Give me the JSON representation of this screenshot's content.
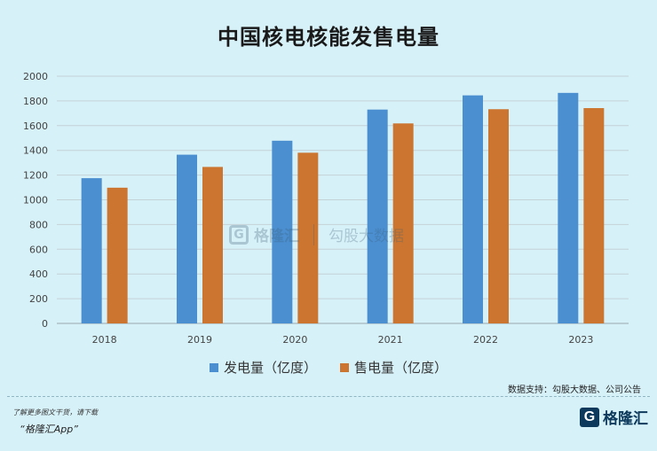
{
  "chart_data": {
    "type": "bar",
    "title": "中国核电核能发售电量",
    "categories": [
      "2018",
      "2019",
      "2020",
      "2021",
      "2022",
      "2023"
    ],
    "series": [
      {
        "name": "发电量（亿度）",
        "color": "#4b8fd1",
        "values": [
          1175,
          1365,
          1478,
          1730,
          1845,
          1865
        ]
      },
      {
        "name": "售电量（亿度）",
        "color": "#cb7530",
        "values": [
          1098,
          1266,
          1381,
          1618,
          1733,
          1742
        ]
      }
    ],
    "ylim": [
      0,
      2000
    ],
    "yticks": [
      "0",
      "200",
      "400",
      "600",
      "800",
      "1000",
      "1200",
      "1400",
      "1600",
      "1800",
      "2000"
    ],
    "grid": true,
    "legend": "bottom"
  },
  "source_text": "数据支持：勾股大数据、公司公告",
  "footer": {
    "note": "了解更多图文干货，请下载",
    "app": "“格隆汇App”"
  },
  "brand": {
    "mark": "G",
    "name": "格隆汇"
  },
  "watermark": {
    "mark": "G",
    "name": "格隆汇",
    "partner": "勾股大数据"
  }
}
